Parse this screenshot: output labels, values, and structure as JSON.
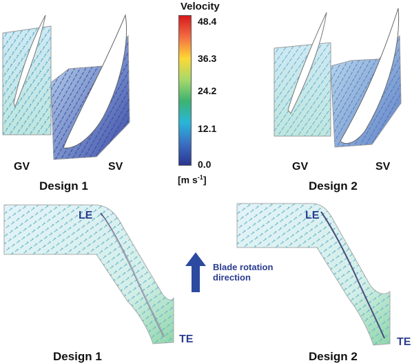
{
  "legend": {
    "title": "Velocity",
    "unit_main": "[m s",
    "unit_sup": "-1",
    "unit_close": "]",
    "ticks": [
      "48.4",
      "36.3",
      "24.2",
      "12.1",
      "0.0"
    ],
    "gradient": [
      "#d7191c",
      "#f46d43",
      "#fdd835",
      "#a6d96a",
      "#3cb371",
      "#29b6d9",
      "#3a6fc4",
      "#2c3590"
    ]
  },
  "top_panels": [
    {
      "gv_label": "GV",
      "sv_label": "SV",
      "caption": "Design 1"
    },
    {
      "gv_label": "GV",
      "sv_label": "SV",
      "caption": "Design 2"
    }
  ],
  "bottom_panels": [
    {
      "le_label": "LE",
      "te_label": "TE",
      "caption": "Design 1"
    },
    {
      "le_label": "LE",
      "te_label": "TE",
      "caption": "Design 2"
    }
  ],
  "rotation": {
    "text_line1": "Blade rotation",
    "text_line2": "direction",
    "arrow_color": "#2b4aa0"
  }
}
